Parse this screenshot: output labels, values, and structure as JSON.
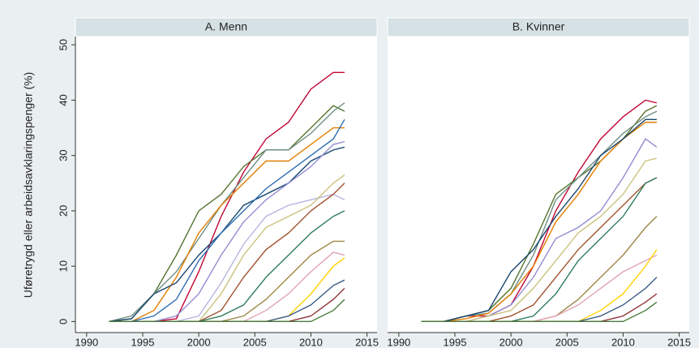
{
  "chart_data": [
    {
      "type": "line",
      "title": "A. Menn",
      "y_label": "Uføretrygd eller arbeidsavklaringspenger (%)",
      "x": [
        1992,
        1994,
        1996,
        1998,
        2000,
        2002,
        2004,
        2006,
        2008,
        2010,
        2012,
        2013
      ],
      "xlim": [
        1989,
        2015.9
      ],
      "ylim": [
        -2,
        51.5
      ],
      "xticks": [
        1990,
        1995,
        2000,
        2005,
        2010,
        2015
      ],
      "yticks": [
        0,
        10,
        20,
        30,
        40,
        50
      ],
      "series": [
        {
          "color": "#c10534",
          "values": [
            0,
            0,
            0,
            0.5,
            9,
            19,
            27,
            33,
            36,
            42,
            45,
            45
          ]
        },
        {
          "color": "#55752f",
          "values": [
            0,
            0.5,
            5,
            12,
            20,
            23,
            28,
            31,
            31,
            35,
            39,
            38
          ]
        },
        {
          "color": "#6e8e84",
          "values": [
            0,
            1,
            5,
            9,
            15,
            21,
            26,
            31,
            31,
            34,
            38,
            39.5
          ]
        },
        {
          "color": "#e37e00",
          "values": [
            0,
            0,
            2,
            8,
            16,
            21,
            25,
            29,
            29,
            32,
            35,
            35
          ]
        },
        {
          "color": "#1a476f",
          "values": [
            0,
            0.5,
            5,
            7,
            12,
            16,
            21,
            23,
            25,
            29,
            31,
            31.5
          ]
        },
        {
          "color": "#2d6db5",
          "values": [
            0,
            0,
            1,
            4,
            11,
            16,
            20,
            24,
            27,
            30,
            33,
            36.5
          ]
        },
        {
          "color": "#938dd2",
          "values": [
            0,
            0,
            0,
            1,
            5,
            12,
            18,
            22,
            25,
            28,
            32,
            32.5
          ]
        },
        {
          "color": "#b9b5e0",
          "values": [
            0,
            0,
            0,
            0,
            1,
            7,
            14,
            19,
            21,
            22,
            23,
            22
          ]
        },
        {
          "color": "#cac27e",
          "values": [
            0,
            0,
            0,
            0,
            0,
            5,
            12,
            17,
            19,
            21,
            25,
            26.5
          ]
        },
        {
          "color": "#a0522d",
          "values": [
            0,
            0,
            0,
            0,
            0,
            2,
            8,
            13,
            16,
            20,
            23,
            25
          ]
        },
        {
          "color": "#2f7d5b",
          "values": [
            0,
            0,
            0,
            0,
            0,
            1,
            3,
            8,
            12,
            16,
            19,
            20
          ]
        },
        {
          "color": "#9c8847",
          "values": [
            0,
            0,
            0,
            0,
            0,
            0,
            1,
            4,
            8,
            12,
            14.5,
            14.5
          ]
        },
        {
          "color": "#e0a4b3",
          "values": [
            0,
            0,
            0,
            0,
            0,
            0,
            0,
            2,
            5,
            9,
            12.5,
            12
          ]
        },
        {
          "color": "#ffd200",
          "values": [
            0,
            0,
            0,
            0,
            0,
            0,
            0,
            0,
            1,
            5,
            10,
            11.5
          ]
        },
        {
          "color": "#3e5f8a",
          "values": [
            0,
            0,
            0,
            0,
            0,
            0,
            0,
            0,
            1,
            3,
            6.5,
            7.5
          ]
        },
        {
          "color": "#90353b",
          "values": [
            0,
            0,
            0,
            0,
            0,
            0,
            0,
            0,
            0,
            1,
            4,
            6
          ]
        },
        {
          "color": "#4a7a3a",
          "values": [
            0,
            0,
            0,
            0,
            0,
            0,
            0,
            0,
            0,
            0,
            2,
            4
          ]
        }
      ]
    },
    {
      "type": "line",
      "title": "B. Kvinner",
      "x": [
        1992,
        1994,
        1996,
        1998,
        2000,
        2002,
        2004,
        2006,
        2008,
        2010,
        2012,
        2013
      ],
      "xlim": [
        1989,
        2015.9
      ],
      "ylim": [
        -2,
        51.5
      ],
      "xticks": [
        1990,
        1995,
        2000,
        2005,
        2010,
        2015
      ],
      "series": [
        {
          "color": "#c10534",
          "values": [
            0,
            0,
            1,
            1,
            3,
            10,
            20,
            27,
            33,
            37,
            40,
            39.5
          ]
        },
        {
          "color": "#55752f",
          "values": [
            0,
            0,
            1,
            2,
            6,
            14,
            23,
            26,
            29,
            33,
            38,
            39
          ]
        },
        {
          "color": "#6e8e84",
          "values": [
            0,
            0,
            1,
            1.5,
            5,
            12,
            22,
            26,
            30,
            34,
            37,
            38
          ]
        },
        {
          "color": "#e37e00",
          "values": [
            0,
            0,
            0.5,
            1.5,
            5,
            10,
            18,
            23,
            29,
            33,
            36,
            36
          ]
        },
        {
          "color": "#1a476f",
          "values": [
            0,
            0,
            1,
            2,
            9,
            13,
            19,
            24,
            30,
            33,
            36.5,
            36.5
          ]
        },
        {
          "color": "#938dd2",
          "values": [
            0,
            0,
            0,
            1,
            3,
            8,
            15,
            17,
            20,
            26,
            33,
            31.5
          ]
        },
        {
          "color": "#cac27e",
          "values": [
            0,
            0,
            0,
            1,
            2,
            6,
            11,
            16,
            19,
            23,
            29,
            29.5
          ]
        },
        {
          "color": "#a0522d",
          "values": [
            0,
            0,
            0,
            0,
            1,
            3,
            8,
            13,
            17,
            21,
            25,
            26
          ]
        },
        {
          "color": "#2f7d5b",
          "values": [
            0,
            0,
            0,
            0,
            0,
            1,
            5,
            11,
            15,
            19,
            25,
            26
          ]
        },
        {
          "color": "#9c8847",
          "values": [
            0,
            0,
            0,
            0,
            0,
            0,
            1,
            4,
            8,
            12,
            17,
            19
          ]
        },
        {
          "color": "#e0a4b3",
          "values": [
            0,
            0,
            0,
            0,
            0,
            0,
            1,
            3,
            6,
            9,
            11,
            12
          ]
        },
        {
          "color": "#ffd200",
          "values": [
            0,
            0,
            0,
            0,
            0,
            0,
            0,
            0,
            2,
            5,
            10,
            13
          ]
        },
        {
          "color": "#3e5f8a",
          "values": [
            0,
            0,
            0,
            0,
            0,
            0,
            0,
            0,
            1,
            3,
            6,
            8
          ]
        },
        {
          "color": "#90353b",
          "values": [
            0,
            0,
            0,
            0,
            0,
            0,
            0,
            0,
            0,
            1,
            3.5,
            5
          ]
        },
        {
          "color": "#4a7a3a",
          "values": [
            0,
            0,
            0,
            0,
            0,
            0,
            0,
            0,
            0,
            0,
            2,
            3.5
          ]
        }
      ]
    }
  ]
}
